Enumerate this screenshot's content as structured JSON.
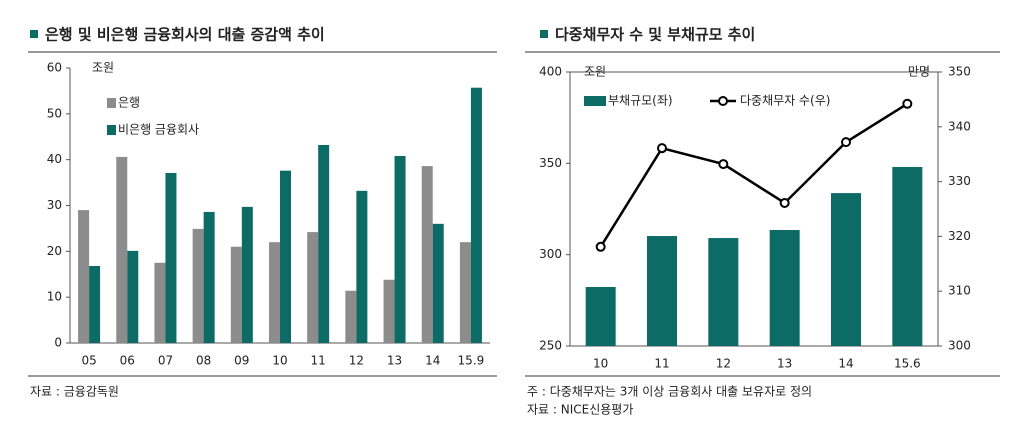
{
  "chart_data": [
    {
      "type": "bar",
      "title": "은행 및 비은행 금융회사의 대출 증감액 추이",
      "y_label": "조원",
      "categories": [
        "05",
        "06",
        "07",
        "08",
        "09",
        "10",
        "11",
        "12",
        "13",
        "14",
        "15.9"
      ],
      "series": [
        {
          "name": "은행",
          "color": "#8c8c8c",
          "values": [
            29,
            40.6,
            17.5,
            24.9,
            21,
            22,
            24.2,
            11.4,
            13.8,
            38.6,
            22
          ]
        },
        {
          "name": "비은행 금융회사",
          "color": "#0d6b66",
          "values": [
            16.8,
            20.1,
            37.1,
            28.6,
            29.7,
            37.6,
            43.2,
            33.2,
            40.8,
            26,
            55.7
          ]
        }
      ],
      "ylim": [
        0,
        60
      ],
      "yticks": [
        0,
        10,
        20,
        30,
        40,
        50,
        60
      ],
      "source": "자료 : 금융감독원"
    },
    {
      "type": "combo",
      "title": "다중채무자 수 및 부채규모 추이",
      "y_label": "조원",
      "y2_label": "만명",
      "categories": [
        "10",
        "11",
        "12",
        "13",
        "14",
        "15.6"
      ],
      "series": [
        {
          "name": "부채규모(좌)",
          "type": "bar",
          "color": "#0d6b66",
          "values": [
            282.3,
            310.2,
            309.1,
            313.5,
            333.7,
            348
          ]
        },
        {
          "name": "다중채무자 수(우)",
          "type": "line",
          "axis": "y2",
          "color": "#000000",
          "values": [
            318.1,
            336.1,
            333.2,
            326.1,
            337.2,
            344.2
          ]
        }
      ],
      "ylim": [
        250,
        400
      ],
      "yticks": [
        250,
        300,
        350,
        400
      ],
      "y2lim": [
        300,
        350
      ],
      "y2ticks": [
        300,
        310,
        320,
        330,
        340,
        350
      ],
      "note": "주 : 다중채무자는 3개 이상 금융회사 대출 보유자로 정의",
      "source": "자료 : NICE신용평가"
    }
  ]
}
